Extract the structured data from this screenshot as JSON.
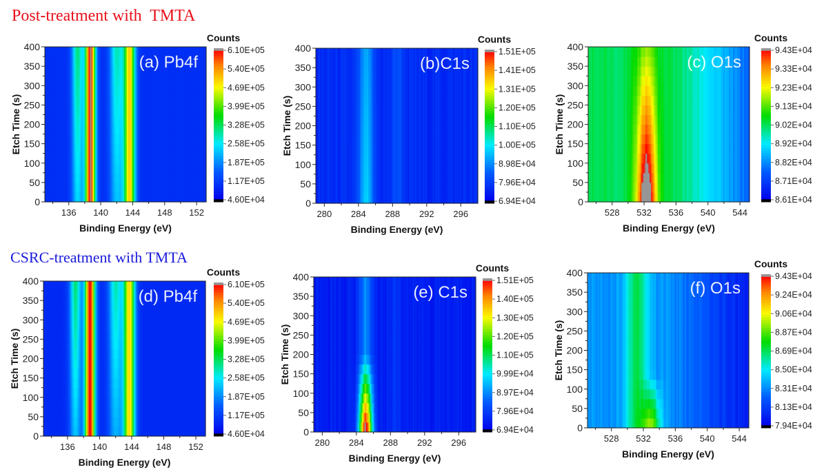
{
  "figure": {
    "row_titles": [
      "Post-treatment with  TMTA",
      "CSRC-treatment with TMTA"
    ]
  },
  "chart_data": [
    {
      "type": "heatmap",
      "panel": "a",
      "row": 0,
      "title": "(a) Pb4f",
      "xlabel": "Binding Energy (eV)",
      "ylabel": "Etch Time (s)",
      "xlim": [
        133,
        153.2
      ],
      "ylim": [
        0,
        400
      ],
      "xticks": [
        136,
        140,
        144,
        148,
        152
      ],
      "yticks": [
        0,
        50,
        100,
        150,
        200,
        250,
        300,
        350,
        400
      ],
      "colorbar_title": "Counts",
      "colorbar_ticks": [
        "6.10E+05",
        "5.40E+05",
        "4.69E+05",
        "3.99E+05",
        "3.28E+05",
        "2.58E+05",
        "1.87E+05",
        "1.17E+05",
        "4.60E+04"
      ],
      "zlim": [
        46000,
        610000
      ],
      "background": 110000,
      "peaks": [
        {
          "center": 138.7,
          "width": 0.45,
          "amp": 500000,
          "trend": 0
        },
        {
          "center": 143.6,
          "width": 0.5,
          "amp": 380000,
          "trend": 0
        },
        {
          "center": 137.1,
          "width": 0.5,
          "amp": 170000,
          "trend": -0.4
        },
        {
          "center": 142.0,
          "width": 0.6,
          "amp": 150000,
          "trend": -0.4
        }
      ]
    },
    {
      "type": "heatmap",
      "panel": "b",
      "row": 0,
      "title": "(b)C1s",
      "xlabel": "Binding Energy (eV)",
      "ylabel": "Etch Time (s)",
      "xlim": [
        279,
        298
      ],
      "ylim": [
        0,
        400
      ],
      "xticks": [
        280,
        284,
        288,
        292,
        296
      ],
      "yticks": [
        0,
        50,
        100,
        150,
        200,
        250,
        300,
        350,
        400
      ],
      "colorbar_title": "Counts",
      "colorbar_ticks": [
        "1.51E+05",
        "1.41E+05",
        "1.31E+05",
        "1.20E+05",
        "1.10E+05",
        "1.00E+05",
        "8.98E+04",
        "7.96E+04",
        "6.94E+04"
      ],
      "zlim": [
        69400,
        151000
      ],
      "background": 78000,
      "peaks": [
        {
          "center": 284.9,
          "width": 0.6,
          "amp": 17000,
          "trend": 0.25
        },
        {
          "center": 288.6,
          "width": 0.5,
          "amp": 6000,
          "trend": 0
        }
      ]
    },
    {
      "type": "heatmap",
      "panel": "c",
      "row": 0,
      "title": "(c) O1s",
      "xlabel": "Binding Energy (eV)",
      "ylabel": "Etch Time (s)",
      "xlim": [
        525,
        545.2
      ],
      "ylim": [
        0,
        400
      ],
      "xticks": [
        528,
        532,
        536,
        540,
        544
      ],
      "yticks": [
        0,
        50,
        100,
        150,
        200,
        250,
        300,
        350,
        400
      ],
      "colorbar_title": "Counts",
      "colorbar_ticks": [
        "9.43E+04",
        "9.33E+04",
        "9.23E+04",
        "9.13E+04",
        "9.02E+04",
        "8.92E+04",
        "8.82E+04",
        "8.71E+04",
        "8.61E+04"
      ],
      "zlim": [
        86100,
        94300
      ],
      "background": 90200,
      "slope": -260,
      "slope_start": 536,
      "peaks": [
        {
          "center": 532.3,
          "width": 0.9,
          "amp": 3200,
          "trend": 1.2
        }
      ]
    },
    {
      "type": "heatmap",
      "panel": "d",
      "row": 1,
      "title": "(d) Pb4f",
      "xlabel": "Binding Energy (eV)",
      "ylabel": "Etch Time (s)",
      "xlim": [
        133,
        153.2
      ],
      "ylim": [
        0,
        400
      ],
      "xticks": [
        136,
        140,
        144,
        148,
        152
      ],
      "yticks": [
        0,
        50,
        100,
        150,
        200,
        250,
        300,
        350,
        400
      ],
      "colorbar_title": "Counts",
      "colorbar_ticks": [
        "6.10E+05",
        "5.40E+05",
        "4.69E+05",
        "3.99E+05",
        "3.28E+05",
        "2.58E+05",
        "1.87E+05",
        "1.17E+05",
        "4.60E+04"
      ],
      "zlim": [
        46000,
        610000
      ],
      "background": 105000,
      "peaks": [
        {
          "center": 138.8,
          "width": 0.45,
          "amp": 500000,
          "trend": 0
        },
        {
          "center": 143.7,
          "width": 0.5,
          "amp": 380000,
          "trend": 0
        },
        {
          "center": 137.0,
          "width": 0.5,
          "amp": 170000,
          "trend": -0.5
        },
        {
          "center": 142.0,
          "width": 0.6,
          "amp": 150000,
          "trend": -0.5
        }
      ]
    },
    {
      "type": "heatmap",
      "panel": "e",
      "row": 1,
      "title": "(e) C1s",
      "xlabel": "Binding Energy (eV)",
      "ylabel": "Etch Time (s)",
      "xlim": [
        279,
        298
      ],
      "ylim": [
        0,
        400
      ],
      "xticks": [
        280,
        284,
        288,
        292,
        296
      ],
      "yticks": [
        0,
        50,
        100,
        150,
        200,
        250,
        300,
        350,
        400
      ],
      "colorbar_title": "Counts",
      "colorbar_ticks": [
        "1.51E+05",
        "1.40E+05",
        "1.30E+05",
        "1.20E+05",
        "1.10E+05",
        "9.99E+04",
        "8.97E+04",
        "7.96E+04",
        "6.94E+04"
      ],
      "zlim": [
        69400,
        151000
      ],
      "background": 76000,
      "peaks": [
        {
          "center": 285.1,
          "width": 0.55,
          "amp": 15000,
          "trend": 0
        },
        {
          "center": 285.1,
          "width": 0.55,
          "amp": 65000,
          "trend": 0,
          "decay_to": 200
        },
        {
          "center": 288.6,
          "width": 0.5,
          "amp": 4000,
          "trend": 0
        }
      ]
    },
    {
      "type": "heatmap",
      "panel": "f",
      "row": 1,
      "title": "(f) O1s",
      "xlabel": "Binding Energy (eV)",
      "ylabel": "Etch Time (s)",
      "xlim": [
        525,
        545.2
      ],
      "ylim": [
        0,
        400
      ],
      "xticks": [
        528,
        532,
        536,
        540,
        544
      ],
      "yticks": [
        0,
        50,
        100,
        150,
        200,
        250,
        300,
        350,
        400
      ],
      "colorbar_title": "Counts",
      "colorbar_ticks": [
        "9.43E+04",
        "9.24E+04",
        "9.06E+04",
        "8.87E+04",
        "8.69E+04",
        "8.50E+04",
        "8.31E+04",
        "8.13E+04",
        "7.94E+04"
      ],
      "zlim": [
        79400,
        94300
      ],
      "background": 83500,
      "slope": -300,
      "slope_start": 535,
      "peaks": [
        {
          "center": 531.2,
          "width": 1.0,
          "amp": 3500,
          "trend": 0
        },
        {
          "center": 533.0,
          "width": 0.8,
          "amp": 5500,
          "trend": 0,
          "decay_to": 140
        }
      ]
    }
  ]
}
